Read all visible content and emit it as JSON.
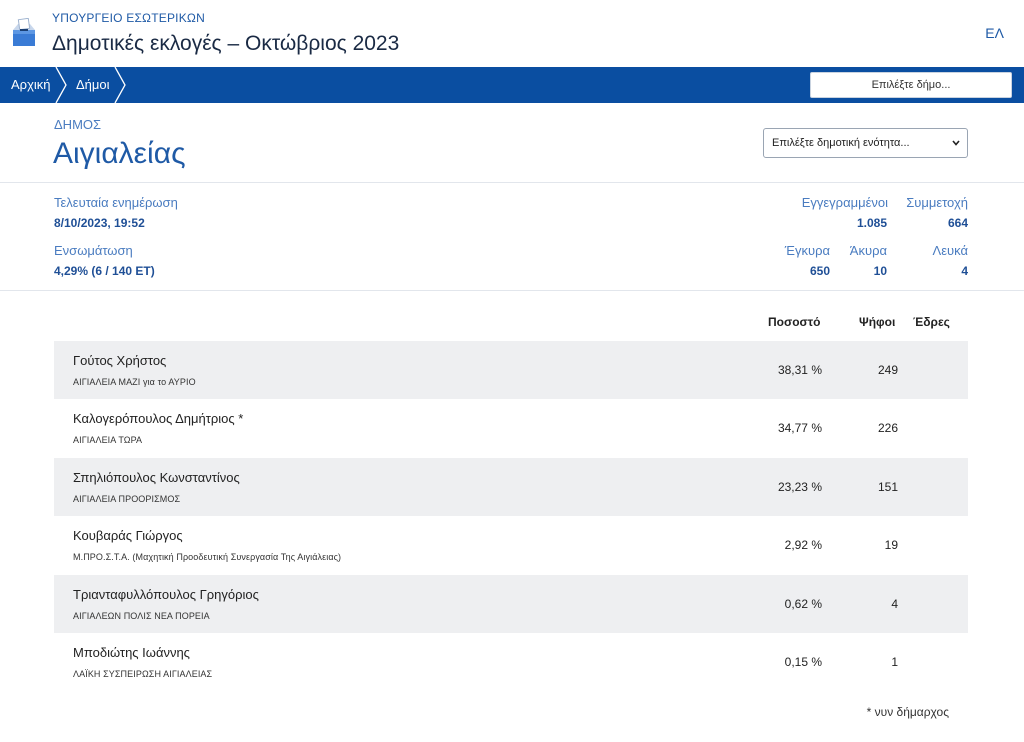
{
  "header": {
    "ministry": "ΥΠΟΥΡΓΕΙΟ ΕΣΩΤΕΡΙΚΩΝ",
    "title": "Δημοτικές εκλογές – Οκτώβριος 2023",
    "language": "ΕΛ",
    "logo_icon": "ballot-box-icon"
  },
  "nav": {
    "breadcrumbs": [
      "Αρχική",
      "Δήμοι"
    ],
    "municipality_select_placeholder": "Επιλέξτε δήμο...",
    "bar_color": "#0a4ea1"
  },
  "municipality": {
    "label": "ΔΗΜΟΣ",
    "name": "Αιγιαλείας",
    "unit_select_placeholder": "Επιλέξτε δημοτική ενότητα..."
  },
  "stats": {
    "last_update_label": "Τελευταία ενημέρωση",
    "last_update_value": "8/10/2023, 19:52",
    "integration_label": "Ενσωμάτωση",
    "integration_value": "4,29% (6 / 140 ΕΤ)",
    "registered_label": "Εγγεγραμμένοι",
    "registered_value": "1.085",
    "turnout_label": "Συμμετοχή",
    "turnout_value": "664",
    "valid_label": "Έγκυρα",
    "valid_value": "650",
    "invalid_label": "Άκυρα",
    "invalid_value": "10",
    "blank_label": "Λευκά",
    "blank_value": "4"
  },
  "table": {
    "headers": {
      "percent": "Ποσοστό",
      "votes": "Ψήφοι",
      "seats": "Έδρες"
    },
    "rows": [
      {
        "name": "Γούτος Χρήστος",
        "party": "ΑΙΓΙΑΛΕΙΑ ΜΑΖΙ για το ΑΥΡΙΟ",
        "percent": "38,31 %",
        "votes": "249"
      },
      {
        "name": "Καλογερόπουλος Δημήτριος *",
        "party": "ΑΙΓΙΑΛΕΙΑ ΤΩΡΑ",
        "percent": "34,77 %",
        "votes": "226"
      },
      {
        "name": "Σπηλιόπουλος Κωνσταντίνος",
        "party": "ΑΙΓΙΑΛΕΙΑ ΠΡΟΟΡΙΣΜΟΣ",
        "percent": "23,23 %",
        "votes": "151"
      },
      {
        "name": "Κουβαράς Γιώργος",
        "party": "Μ.ΠΡΟ.Σ.Τ.Α. (Μαχητική Προοδευτική Συνεργασία Της Αιγιάλειας)",
        "percent": "2,92 %",
        "votes": "19"
      },
      {
        "name": "Τριανταφυλλόπουλος Γρηγόριος",
        "party": "ΑΙΓΙΑΛΕΩΝ ΠΟΛΙΣ ΝΕΑ ΠΟΡΕΙΑ",
        "percent": "0,62 %",
        "votes": "4"
      },
      {
        "name": "Μποδιώτης Ιωάννης",
        "party": "ΛΑΪΚΗ ΣΥΣΠΕΙΡΩΣΗ ΑΙΓΙΑΛΕΙΑΣ",
        "percent": "0,15 %",
        "votes": "1"
      }
    ],
    "footnote": "* νυν δήμαρχος"
  }
}
